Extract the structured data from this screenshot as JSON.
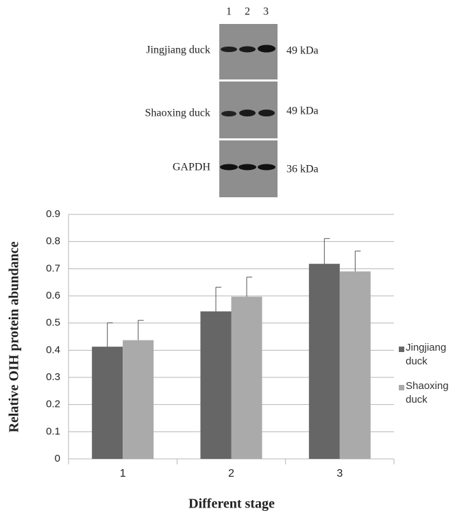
{
  "blot": {
    "lanes": [
      "1",
      "2",
      "3"
    ],
    "rows": [
      {
        "label": "Jingjiang duck",
        "size": "49 kDa"
      },
      {
        "label": "Shaoxing duck",
        "size": "49 kDa"
      },
      {
        "label": "GAPDH",
        "size": "36 kDa"
      }
    ]
  },
  "chart_data": {
    "type": "bar",
    "x_label": "Different stage",
    "y_label": "Relative OIH protein abundance",
    "categories": [
      "1",
      "2",
      "3"
    ],
    "series": [
      {
        "name": "Jingjiang duck",
        "color": "#666666",
        "values": [
          0.413,
          0.543,
          0.718
        ],
        "errors": [
          0.088,
          0.089,
          0.093
        ]
      },
      {
        "name": "Shaoxing duck",
        "color": "#aaaaaa",
        "values": [
          0.437,
          0.597,
          0.69
        ],
        "errors": [
          0.073,
          0.072,
          0.075
        ]
      }
    ],
    "ylim": [
      0,
      0.9
    ],
    "yticks": [
      0,
      0.1,
      0.2,
      0.3,
      0.4,
      0.5,
      0.6,
      0.7,
      0.8,
      0.9
    ],
    "grid": true
  }
}
